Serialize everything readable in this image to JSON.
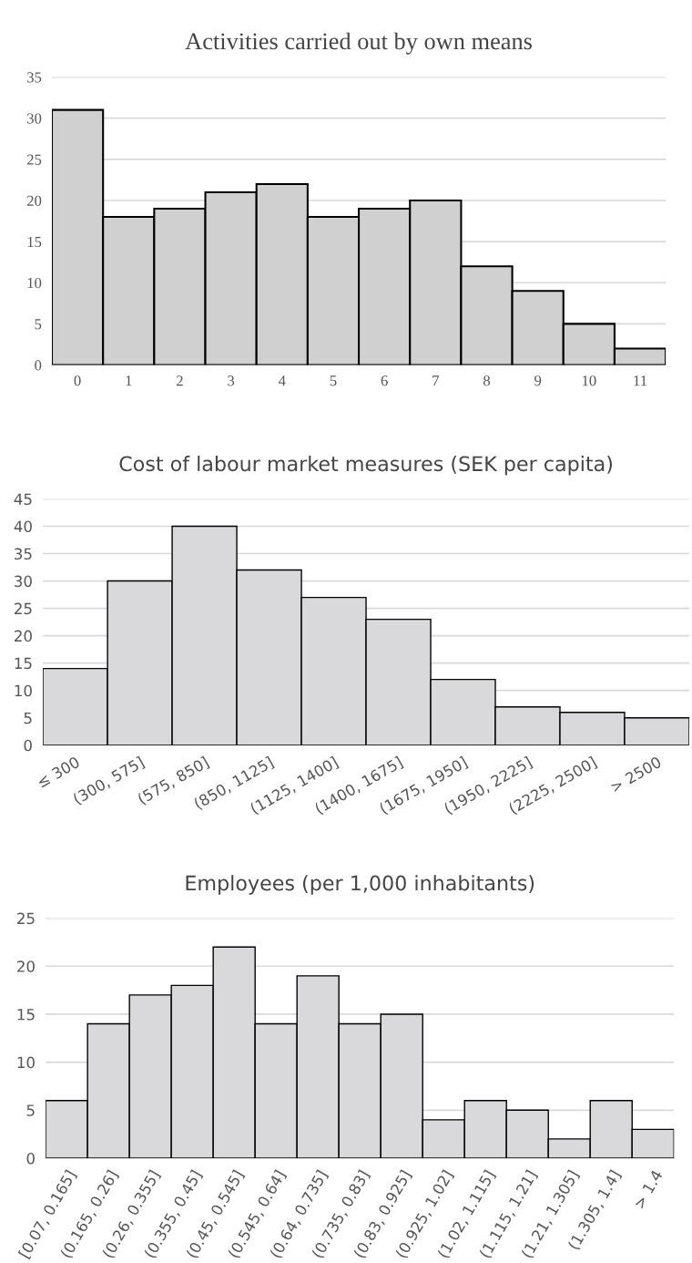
{
  "chart_data": [
    {
      "type": "bar",
      "title": "Activities carried out by own means",
      "categories": [
        "0",
        "1",
        "2",
        "3",
        "4",
        "5",
        "6",
        "7",
        "8",
        "9",
        "10",
        "11"
      ],
      "values": [
        31,
        18,
        19,
        21,
        22,
        18,
        19,
        20,
        12,
        9,
        5,
        2
      ],
      "color": "#d0d0d0",
      "ylim": [
        0,
        35
      ],
      "yticks": [
        0,
        5,
        10,
        15,
        20,
        25,
        30,
        35
      ],
      "grid": "y"
    },
    {
      "type": "bar",
      "title": "Cost of labour market measures (SEK per capita)",
      "categories": [
        "≤ 300",
        "(300, 575]",
        "(575, 850]",
        "(850, 1125]",
        "(1125, 1400]",
        "(1400, 1675]",
        "(1675, 1950]",
        "(1950, 2225]",
        "(2225, 2500]",
        "> 2500"
      ],
      "values": [
        14,
        30,
        40,
        32,
        27,
        23,
        12,
        7,
        6,
        5
      ],
      "color": "#d9d9db",
      "ylim": [
        0,
        45
      ],
      "yticks": [
        0,
        5,
        10,
        15,
        20,
        25,
        30,
        35,
        40,
        45
      ],
      "grid": "y"
    },
    {
      "type": "bar",
      "title": "Employees (per 1,000 inhabitants)",
      "categories": [
        "[0.07, 0.165]",
        "(0.165, 0.26]",
        "(0.26, 0.355]",
        "(0.355, 0.45]",
        "(0.45, 0.545]",
        "(0.545, 0.64]",
        "(0.64, 0.735]",
        "(0.735, 0.83]",
        "(0.83, 0.925]",
        "(0.925, 1.02]",
        "(1.02, 1.115]",
        "(1.115, 1.21]",
        "(1.21, 1.305]",
        "(1.305, 1.4]",
        "> 1.4"
      ],
      "values": [
        6,
        14,
        17,
        18,
        22,
        14,
        19,
        14,
        15,
        4,
        6,
        5,
        2,
        6,
        3
      ],
      "color": "#d9d9db",
      "ylim": [
        0,
        25
      ],
      "yticks": [
        0,
        5,
        10,
        15,
        20,
        25
      ],
      "grid": "y"
    }
  ]
}
